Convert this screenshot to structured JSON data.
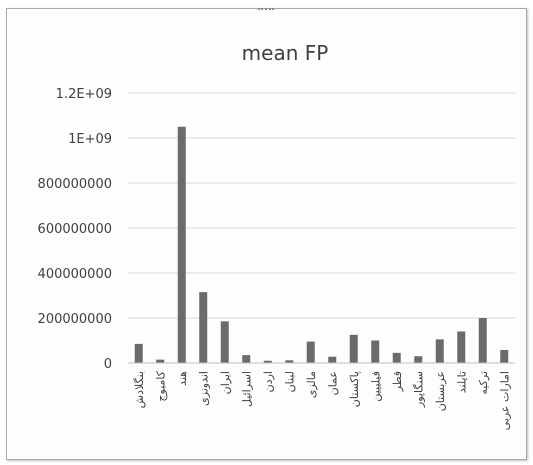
{
  "chart_data": {
    "type": "bar",
    "title": "mean FP",
    "xlabel": "",
    "ylabel": "",
    "ylim": [
      0,
      1200000000
    ],
    "yticks": [
      0,
      200000000,
      400000000,
      600000000,
      800000000,
      1000000000,
      1200000000
    ],
    "ytick_labels": [
      "0",
      "200000000",
      "400000000",
      "600000000",
      "800000000",
      "1E+09",
      "1.2E+09"
    ],
    "grid": true,
    "legend": "none",
    "bar_color": "#6b6b6b",
    "categories": [
      "بنگلادش",
      "کامبوج",
      "هند",
      "اندونزی",
      "ایران",
      "اسرائیل",
      "اردن",
      "لبنان",
      "مالزی",
      "عمان",
      "پاکستان",
      "فیلیپین",
      "قطر",
      "سنگاپور",
      "عربستان",
      "تایلند",
      "ترکیه",
      "امارات عربی"
    ],
    "values": [
      85000000,
      15000000,
      1050000000,
      315000000,
      185000000,
      35000000,
      10000000,
      12000000,
      95000000,
      28000000,
      125000000,
      100000000,
      45000000,
      30000000,
      105000000,
      140000000,
      200000000,
      58000000
    ]
  }
}
